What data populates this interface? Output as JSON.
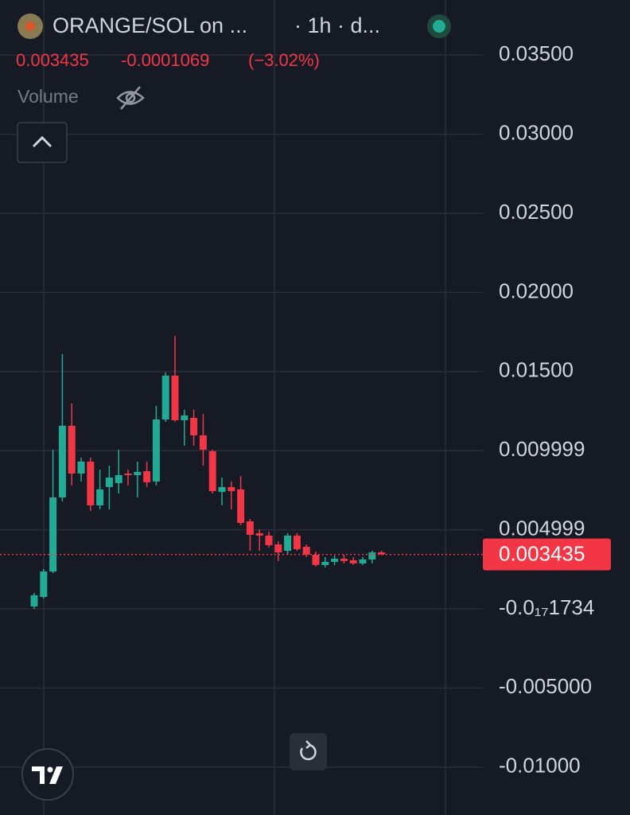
{
  "chart_data": {
    "type": "candlestick",
    "title": "ORANGE/SOL on ...",
    "interval": "· 1h · d...",
    "last_price": 0.003435,
    "change": -0.0001069,
    "change_percent": "(−3.02%)",
    "volume_label": "Volume",
    "up_color": "#22ab94",
    "down_color": "#f23645",
    "ylim": [
      -0.01303,
      0.03848
    ],
    "yticks": [
      {
        "value": 0.035,
        "label": "0.03500"
      },
      {
        "value": 0.03,
        "label": "0.03000"
      },
      {
        "value": 0.025,
        "label": "0.02500"
      },
      {
        "value": 0.02,
        "label": "0.02000"
      },
      {
        "value": 0.015,
        "label": "0.01500"
      },
      0.009999,
      0.004999,
      {
        "value": -1.734e-18,
        "label": "-0.0₁₇1734"
      },
      {
        "value": -0.005,
        "label": "-0.005000"
      },
      {
        "value": -0.01,
        "label": "-0.01000"
      }
    ],
    "grid": true,
    "categories": [
      null,
      null,
      null,
      null,
      null,
      null,
      null,
      null,
      null,
      null,
      null,
      null,
      null,
      null,
      null,
      null,
      null,
      null,
      null,
      null,
      null,
      null,
      null,
      null,
      null,
      null,
      null,
      null,
      null,
      null,
      null,
      null,
      null,
      null,
      null,
      null,
      null,
      null
    ],
    "open": [
      0.00015,
      0.00075,
      0.00236,
      0.00704,
      0.01157,
      0.00855,
      0.00931,
      0.00654,
      0.0077,
      0.00795,
      0.00855,
      0.00845,
      0.0087,
      0.00805,
      0.01197,
      0.01474,
      0.01192,
      0.01207,
      0.01097,
      0.00996,
      0.00739,
      0.0077,
      0.00755,
      0.00553,
      0.00478,
      0.00463,
      0.00407,
      0.00367,
      0.00463,
      0.00392,
      0.00342,
      0.00277,
      0.00297,
      0.00317,
      0.00307,
      0.00287,
      0.00312,
      0.00357
    ],
    "high": [
      0.00101,
      0.00252,
      0.01006,
      0.0161,
      0.01298,
      0.00956,
      0.00956,
      0.0088,
      0.00905,
      0.01006,
      0.0088,
      0.00931,
      0.00931,
      0.01283,
      0.01494,
      0.01725,
      0.01258,
      0.01258,
      0.01232,
      0.01006,
      0.0083,
      0.00805,
      0.0084,
      0.00568,
      0.00503,
      0.00488,
      0.00428,
      0.00478,
      0.00478,
      0.00407,
      0.00362,
      0.00327,
      0.00337,
      0.00342,
      0.00327,
      0.00327,
      0.00367,
      0.00367
    ],
    "low": [
      0,
      0.00065,
      0.00226,
      0.00679,
      0.0078,
      0.00805,
      0.00619,
      0.00629,
      0.00629,
      0.00729,
      0.0078,
      0.00704,
      0.0077,
      0.0078,
      0.01182,
      0.01182,
      0.01031,
      0.01031,
      0.00905,
      0.00729,
      0.00654,
      0.00629,
      0.00528,
      0.00367,
      0.00367,
      0.00387,
      0.00302,
      0.00342,
      0.00367,
      0.00327,
      0.00267,
      0.00262,
      0.00277,
      0.00287,
      0.00277,
      0.00277,
      0.00287,
      0.0034
    ],
    "close": [
      0.00086,
      0.00236,
      0.00704,
      0.01157,
      0.00855,
      0.00931,
      0.00654,
      0.00755,
      0.0083,
      0.00845,
      0.00845,
      0.00865,
      0.008,
      0.01197,
      0.01474,
      0.01192,
      0.01222,
      0.01097,
      0.01006,
      0.00744,
      0.0077,
      0.00744,
      0.00543,
      0.00468,
      0.00463,
      0.00402,
      0.00357,
      0.00463,
      0.00377,
      0.00342,
      0.00277,
      0.00297,
      0.00317,
      0.00302,
      0.00287,
      0.00312,
      0.00357,
      0.003435
    ]
  }
}
